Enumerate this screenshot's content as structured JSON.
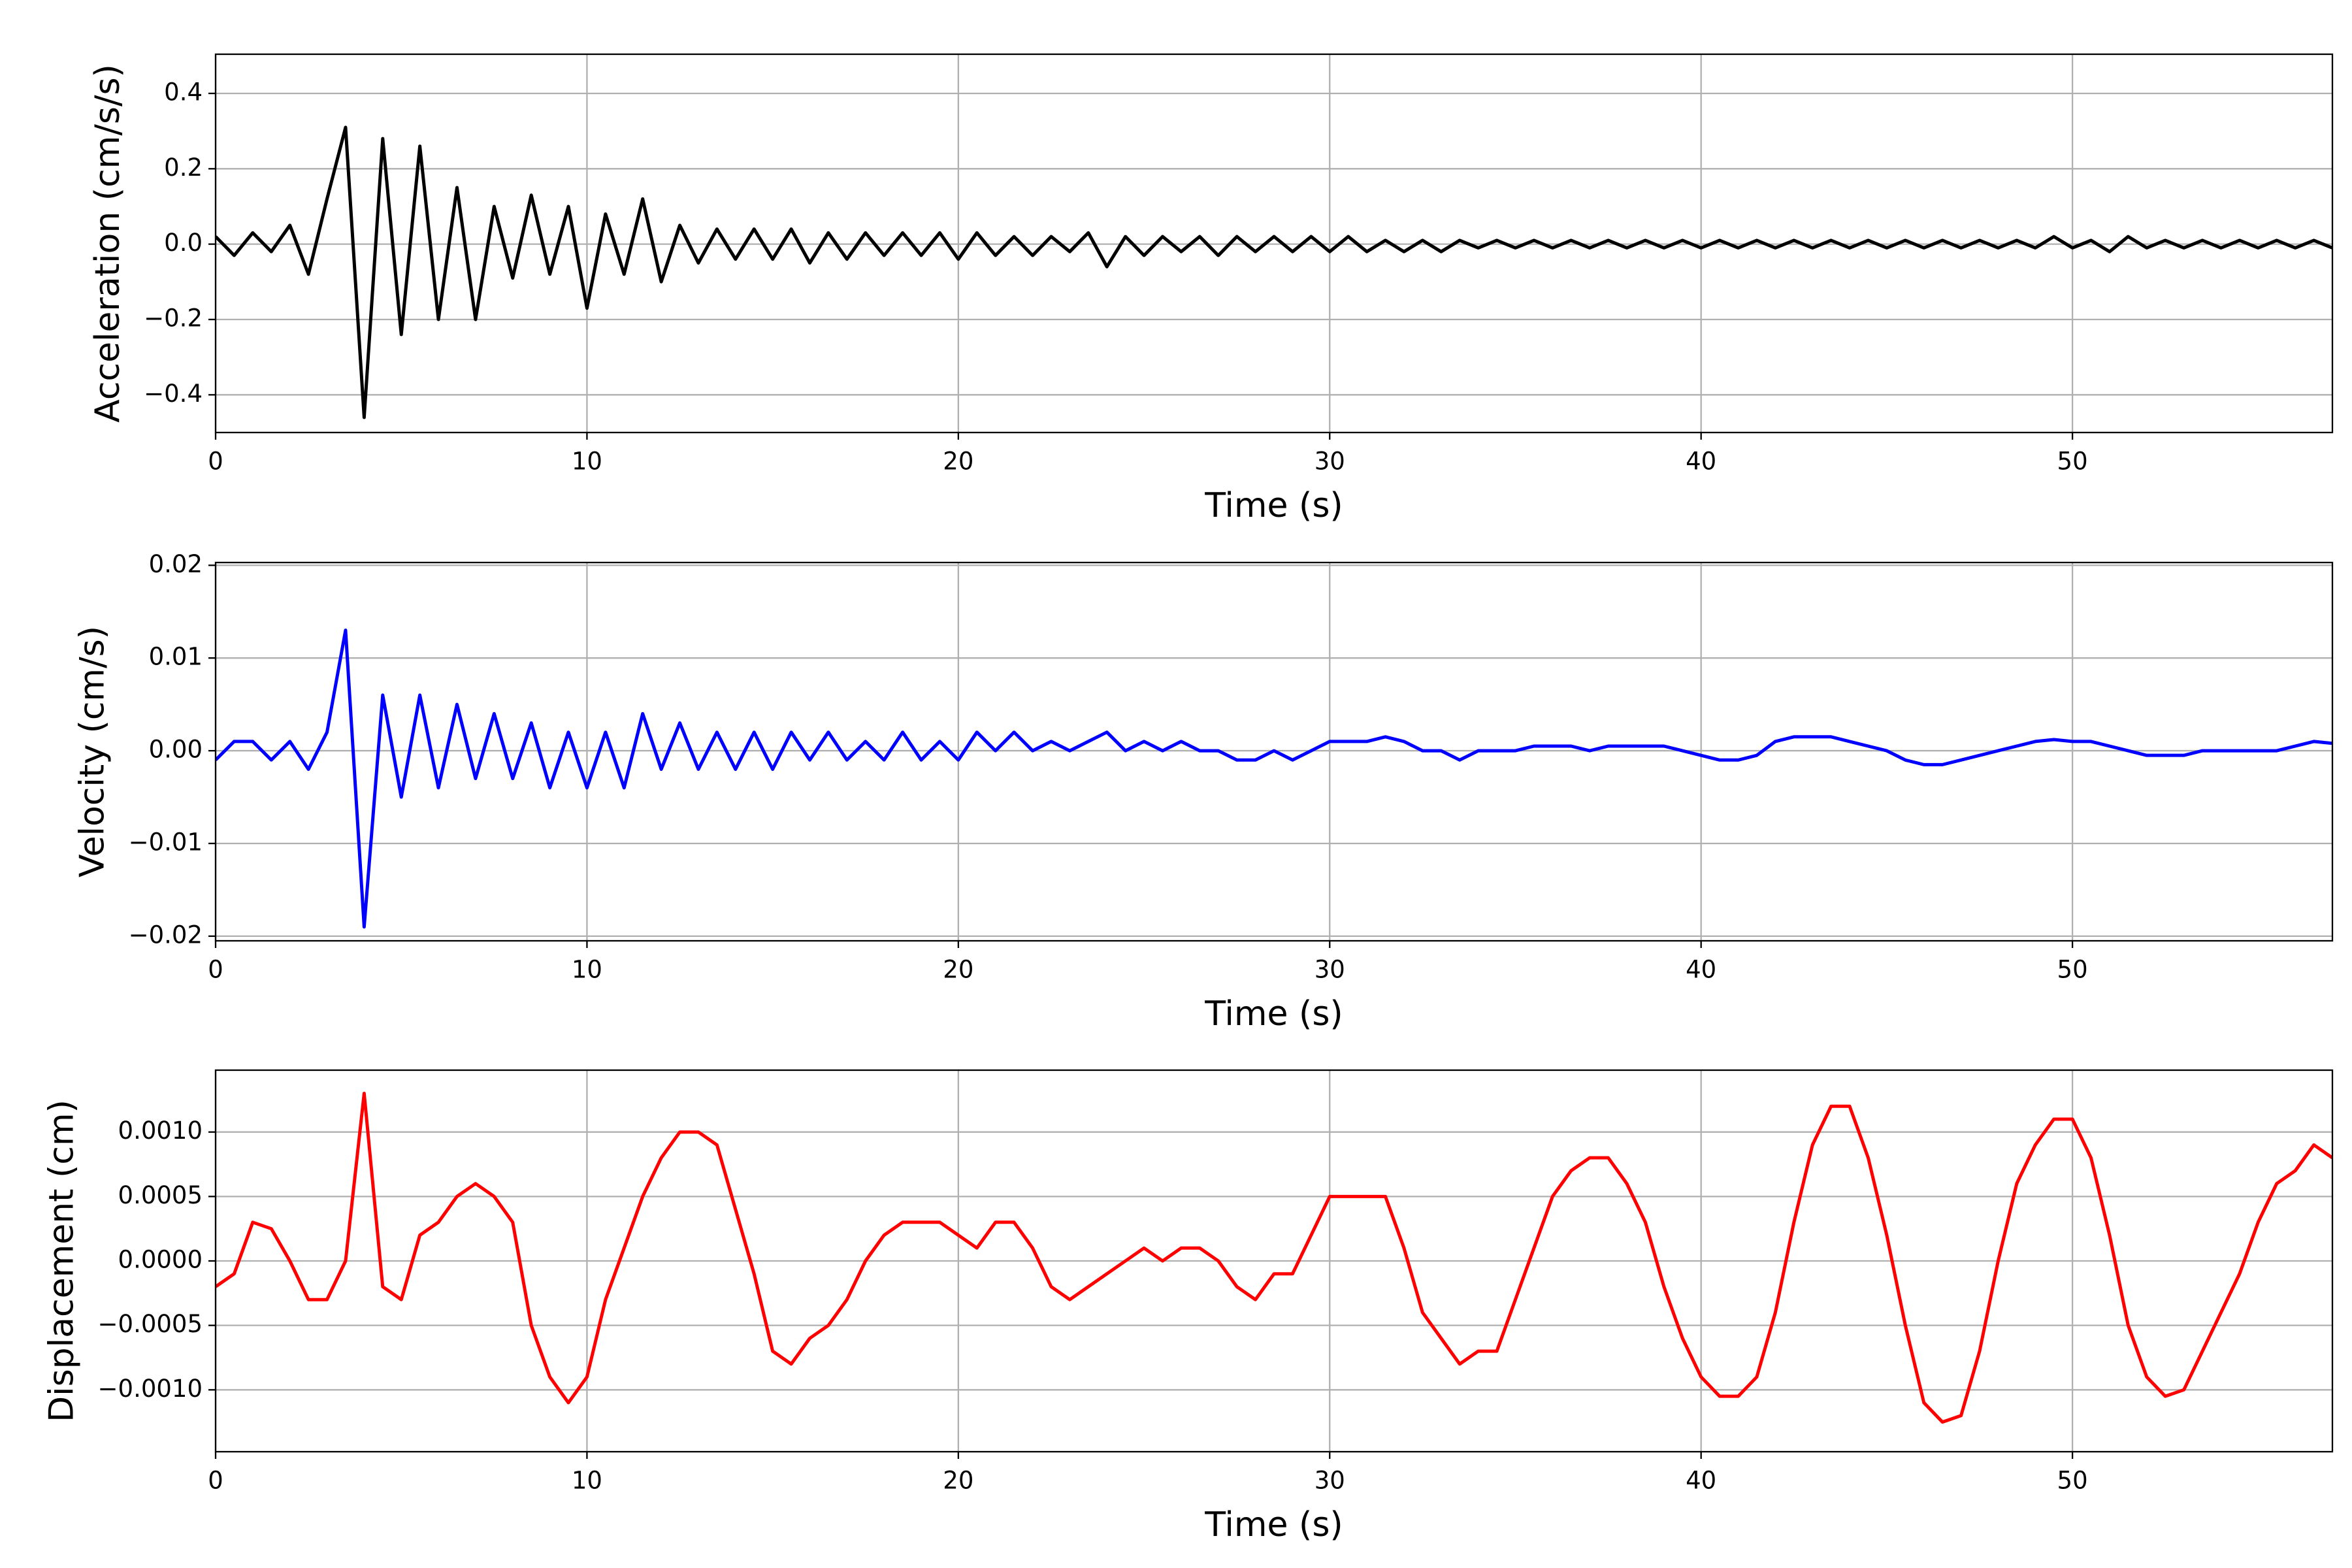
{
  "chart_data": [
    {
      "type": "line",
      "xlabel": "Time (s)",
      "ylabel": "Acceleration (cm/s/s)",
      "color": "#000000",
      "grid": true,
      "x": [
        0,
        0.5,
        1,
        1.5,
        2,
        2.5,
        3,
        3.5,
        4,
        4.5,
        5,
        5.5,
        6,
        6.5,
        7,
        7.5,
        8,
        8.5,
        9,
        9.5,
        10,
        10.5,
        11,
        11.5,
        12,
        12.5,
        13,
        13.5,
        14,
        14.5,
        15,
        15.5,
        16,
        16.5,
        17,
        17.5,
        18,
        18.5,
        19,
        19.5,
        20,
        20.5,
        21,
        21.5,
        22,
        22.5,
        23,
        23.5,
        24,
        24.5,
        25,
        25.5,
        26,
        26.5,
        27,
        27.5,
        28,
        28.5,
        29,
        29.5,
        30,
        30.5,
        31,
        31.5,
        32,
        32.5,
        33,
        33.5,
        34,
        34.5,
        35,
        35.5,
        36,
        36.5,
        37,
        37.5,
        38,
        38.5,
        39,
        39.5,
        40,
        40.5,
        41,
        41.5,
        42,
        42.5,
        43,
        43.5,
        44,
        44.5,
        45,
        45.5,
        46,
        46.5,
        47,
        47.5,
        48,
        48.5,
        49,
        49.5,
        50,
        50.5,
        51,
        51.5,
        52,
        52.5,
        53,
        53.5,
        54,
        54.5,
        55,
        55.5,
        56,
        56.5,
        57
      ],
      "values": [
        0.02,
        -0.03,
        0.03,
        -0.02,
        0.05,
        -0.08,
        0.12,
        0.31,
        -0.46,
        0.28,
        -0.24,
        0.26,
        -0.2,
        0.15,
        -0.2,
        0.1,
        -0.09,
        0.13,
        -0.08,
        0.1,
        -0.17,
        0.08,
        -0.08,
        0.12,
        -0.1,
        0.05,
        -0.05,
        0.04,
        -0.04,
        0.04,
        -0.04,
        0.04,
        -0.05,
        0.03,
        -0.04,
        0.03,
        -0.03,
        0.03,
        -0.03,
        0.03,
        -0.04,
        0.03,
        -0.03,
        0.02,
        -0.03,
        0.02,
        -0.02,
        0.03,
        -0.06,
        0.02,
        -0.03,
        0.02,
        -0.02,
        0.02,
        -0.03,
        0.02,
        -0.02,
        0.02,
        -0.02,
        0.02,
        -0.02,
        0.02,
        -0.02,
        0.01,
        -0.02,
        0.01,
        -0.02,
        0.01,
        -0.01,
        0.01,
        -0.01,
        0.01,
        -0.01,
        0.01,
        -0.01,
        0.01,
        -0.01,
        0.01,
        -0.01,
        0.01,
        -0.01,
        0.01,
        -0.01,
        0.01,
        -0.01,
        0.01,
        -0.01,
        0.01,
        -0.01,
        0.01,
        -0.01,
        0.01,
        -0.01,
        0.01,
        -0.01,
        0.01,
        -0.01,
        0.01,
        -0.01,
        0.02,
        -0.01,
        0.01,
        -0.02,
        0.02,
        -0.01,
        0.01,
        -0.01,
        0.01,
        -0.01,
        0.01,
        -0.01,
        0.01,
        -0.01,
        0.01,
        -0.01
      ],
      "xlim": [
        0,
        57
      ],
      "xticks": [
        0,
        10,
        20,
        30,
        40,
        50
      ],
      "ylim": [
        -0.5,
        0.504
      ],
      "yticks": [
        {
          "value": -0.4,
          "label": "−0.4"
        },
        {
          "value": -0.2,
          "label": "−0.2"
        },
        {
          "value": 0,
          "label": "0.0"
        },
        0.2,
        0.4
      ]
    },
    {
      "type": "line",
      "xlabel": "Time (s)",
      "ylabel": "Velocity (cm/s)",
      "color": "#0000ff",
      "grid": true,
      "x": [
        0,
        0.5,
        1,
        1.5,
        2,
        2.5,
        3,
        3.5,
        4,
        4.5,
        5,
        5.5,
        6,
        6.5,
        7,
        7.5,
        8,
        8.5,
        9,
        9.5,
        10,
        10.5,
        11,
        11.5,
        12,
        12.5,
        13,
        13.5,
        14,
        14.5,
        15,
        15.5,
        16,
        16.5,
        17,
        17.5,
        18,
        18.5,
        19,
        19.5,
        20,
        20.5,
        21,
        21.5,
        22,
        22.5,
        23,
        23.5,
        24,
        24.5,
        25,
        25.5,
        26,
        26.5,
        27,
        27.5,
        28,
        28.5,
        29,
        29.5,
        30,
        30.5,
        31,
        31.5,
        32,
        32.5,
        33,
        33.5,
        34,
        34.5,
        35,
        35.5,
        36,
        36.5,
        37,
        37.5,
        38,
        38.5,
        39,
        39.5,
        40,
        40.5,
        41,
        41.5,
        42,
        42.5,
        43,
        43.5,
        44,
        44.5,
        45,
        45.5,
        46,
        46.5,
        47,
        47.5,
        48,
        48.5,
        49,
        49.5,
        50,
        50.5,
        51,
        51.5,
        52,
        52.5,
        53,
        53.5,
        54,
        54.5,
        55,
        55.5,
        56,
        56.5,
        57
      ],
      "values": [
        -0.001,
        0.001,
        0.001,
        -0.001,
        0.001,
        -0.002,
        0.002,
        0.013,
        -0.019,
        0.006,
        -0.005,
        0.006,
        -0.004,
        0.005,
        -0.003,
        0.004,
        -0.003,
        0.003,
        -0.004,
        0.002,
        -0.004,
        0.002,
        -0.004,
        0.004,
        -0.002,
        0.003,
        -0.002,
        0.002,
        -0.002,
        0.002,
        -0.002,
        0.002,
        -0.001,
        0.002,
        -0.001,
        0.001,
        -0.001,
        0.002,
        -0.001,
        0.001,
        -0.001,
        0.002,
        0.0,
        0.002,
        0.0,
        0.001,
        0.0,
        0.001,
        0.002,
        0.0,
        0.001,
        0.0,
        0.001,
        0.0,
        0.0,
        -0.001,
        -0.001,
        0.0,
        -0.001,
        0.0,
        0.001,
        0.001,
        0.001,
        0.0015,
        0.001,
        0.0,
        0.0,
        -0.001,
        0.0,
        0.0,
        0.0,
        0.0005,
        0.0005,
        0.0005,
        0.0,
        0.0005,
        0.0005,
        0.0005,
        0.0005,
        0.0,
        -0.0005,
        -0.001,
        -0.001,
        -0.0005,
        0.001,
        0.0015,
        0.0015,
        0.0015,
        0.001,
        0.0005,
        0.0,
        -0.001,
        -0.0015,
        -0.0015,
        -0.001,
        -0.0005,
        0.0,
        0.0005,
        0.001,
        0.0012,
        0.001,
        0.001,
        0.0005,
        0.0,
        -0.0005,
        -0.0005,
        -0.0005,
        0.0,
        0.0,
        0.0,
        0.0,
        0.0,
        0.0005,
        0.001,
        0.0008
      ],
      "xlim": [
        0,
        57
      ],
      "xticks": [
        0,
        10,
        20,
        30,
        40,
        50
      ],
      "ylim": [
        -0.0205,
        0.0203
      ],
      "yticks": [
        {
          "value": -0.02,
          "label": "−0.02"
        },
        {
          "value": -0.01,
          "label": "−0.01"
        },
        {
          "value": 0,
          "label": "0.00"
        },
        0.01,
        0.02
      ]
    },
    {
      "type": "line",
      "xlabel": "Time (s)",
      "ylabel": "Displacement (cm)",
      "color": "#ff0000",
      "grid": true,
      "x": [
        0,
        0.5,
        1,
        1.5,
        2,
        2.5,
        3,
        3.5,
        4,
        4.5,
        5,
        5.5,
        6,
        6.5,
        7,
        7.5,
        8,
        8.5,
        9,
        9.5,
        10,
        10.5,
        11,
        11.5,
        12,
        12.5,
        13,
        13.5,
        14,
        14.5,
        15,
        15.5,
        16,
        16.5,
        17,
        17.5,
        18,
        18.5,
        19,
        19.5,
        20,
        20.5,
        21,
        21.5,
        22,
        22.5,
        23,
        23.5,
        24,
        24.5,
        25,
        25.5,
        26,
        26.5,
        27,
        27.5,
        28,
        28.5,
        29,
        29.5,
        30,
        30.5,
        31,
        31.5,
        32,
        32.5,
        33,
        33.5,
        34,
        34.5,
        35,
        35.5,
        36,
        36.5,
        37,
        37.5,
        38,
        38.5,
        39,
        39.5,
        40,
        40.5,
        41,
        41.5,
        42,
        42.5,
        43,
        43.5,
        44,
        44.5,
        45,
        45.5,
        46,
        46.5,
        47,
        47.5,
        48,
        48.5,
        49,
        49.5,
        50,
        50.5,
        51,
        51.5,
        52,
        52.5,
        53,
        53.5,
        54,
        54.5,
        55,
        55.5,
        56,
        56.5,
        57
      ],
      "values": [
        -0.0002,
        -0.0001,
        0.0003,
        0.00025,
        0.0,
        -0.0003,
        -0.0003,
        0.0,
        0.0013,
        -0.0002,
        -0.0003,
        0.0002,
        0.0003,
        0.0005,
        0.0006,
        0.0005,
        0.0003,
        -0.0005,
        -0.0009,
        -0.0011,
        -0.0009,
        -0.0003,
        0.0001,
        0.0005,
        0.0008,
        0.001,
        0.001,
        0.0009,
        0.0004,
        -0.0001,
        -0.0007,
        -0.0008,
        -0.0006,
        -0.0005,
        -0.0003,
        0.0,
        0.0002,
        0.0003,
        0.0003,
        0.0003,
        0.0002,
        0.0001,
        0.0003,
        0.0003,
        0.0001,
        -0.0002,
        -0.0003,
        -0.0002,
        -0.0001,
        0.0,
        0.0001,
        0.0,
        0.0001,
        0.0001,
        0.0,
        -0.0002,
        -0.0003,
        -0.0001,
        -0.0001,
        0.0002,
        0.0005,
        0.0005,
        0.0005,
        0.0005,
        0.0001,
        -0.0004,
        -0.0006,
        -0.0008,
        -0.0007,
        -0.0007,
        -0.0003,
        0.0001,
        0.0005,
        0.0007,
        0.0008,
        0.0008,
        0.0006,
        0.0003,
        -0.0002,
        -0.0006,
        -0.0009,
        -0.00105,
        -0.00105,
        -0.0009,
        -0.0004,
        0.0003,
        0.0009,
        0.0012,
        0.0012,
        0.0008,
        0.0002,
        -0.0005,
        -0.0011,
        -0.00125,
        -0.0012,
        -0.0007,
        0.0,
        0.0006,
        0.0009,
        0.0011,
        0.0011,
        0.0008,
        0.0002,
        -0.0005,
        -0.0009,
        -0.00105,
        -0.001,
        -0.0007,
        -0.0004,
        -0.0001,
        0.0003,
        0.0006,
        0.0007,
        0.0009,
        0.0008
      ],
      "xlim": [
        0,
        57
      ],
      "xticks": [
        0,
        10,
        20,
        30,
        40,
        50
      ],
      "ylim": [
        -0.00148,
        0.00148
      ],
      "yticks": [
        {
          "value": -0.001,
          "label": "−0.0010"
        },
        {
          "value": -0.0005,
          "label": "−0.0005"
        },
        {
          "value": 0,
          "label": "0.0000"
        },
        {
          "value": 0.0005,
          "label": "0.0005"
        },
        {
          "value": 0.001,
          "label": "0.0010"
        }
      ]
    }
  ]
}
